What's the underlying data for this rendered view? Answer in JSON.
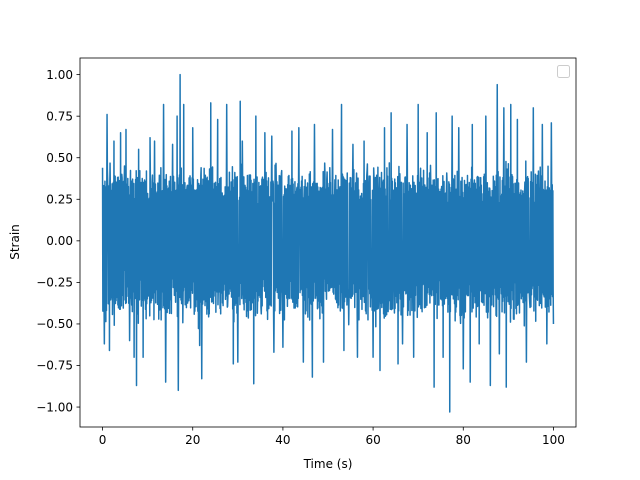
{
  "chart_data": {
    "type": "line",
    "title": "",
    "xlabel": "Time (s)",
    "ylabel": "Strain",
    "xlim": [
      -5,
      105
    ],
    "ylim": [
      -1.12,
      1.1
    ],
    "xticks": [
      0,
      20,
      40,
      60,
      80,
      100
    ],
    "xtick_labels": [
      "0",
      "20",
      "40",
      "60",
      "80",
      "100"
    ],
    "yticks": [
      -1.0,
      -0.75,
      -0.5,
      -0.25,
      0.0,
      0.25,
      0.5,
      0.75,
      1.0
    ],
    "ytick_labels": [
      "−1.00",
      "−0.75",
      "−0.50",
      "−0.25",
      "0.00",
      "0.25",
      "0.50",
      "0.75",
      "1.00"
    ],
    "grid": false,
    "legend": {
      "placement": "upper right",
      "entries": []
    },
    "colors": {
      "series": "#1f77b4",
      "axes": "#000000",
      "background": "#ffffff"
    },
    "series": [
      {
        "x_range": [
          0,
          100
        ],
        "typical_band": [
          -0.5,
          0.45
        ],
        "values": [
          {
            "x": 0.0,
            "y": 0.44
          },
          {
            "x": 0.4,
            "y": -0.62
          },
          {
            "x": 1.0,
            "y": 0.76
          },
          {
            "x": 1.5,
            "y": -0.66
          },
          {
            "x": 2.5,
            "y": 0.6
          },
          {
            "x": 4.0,
            "y": 0.65
          },
          {
            "x": 5.2,
            "y": 0.67
          },
          {
            "x": 6.0,
            "y": -0.6
          },
          {
            "x": 7.0,
            "y": -0.7
          },
          {
            "x": 7.5,
            "y": -0.87
          },
          {
            "x": 8.0,
            "y": 0.55
          },
          {
            "x": 9.0,
            "y": -0.7
          },
          {
            "x": 10.5,
            "y": 0.62
          },
          {
            "x": 11.5,
            "y": 0.6
          },
          {
            "x": 13.5,
            "y": 0.82
          },
          {
            "x": 14.0,
            "y": -0.85
          },
          {
            "x": 15.5,
            "y": 0.58
          },
          {
            "x": 16.5,
            "y": 0.75
          },
          {
            "x": 16.8,
            "y": -0.9
          },
          {
            "x": 17.2,
            "y": 1.0
          },
          {
            "x": 18.0,
            "y": 0.82
          },
          {
            "x": 20.0,
            "y": 0.68
          },
          {
            "x": 21.5,
            "y": -0.63
          },
          {
            "x": 22.0,
            "y": -0.83
          },
          {
            "x": 24.0,
            "y": 0.83
          },
          {
            "x": 25.5,
            "y": 0.73
          },
          {
            "x": 27.5,
            "y": 0.82
          },
          {
            "x": 29.0,
            "y": -0.74
          },
          {
            "x": 30.0,
            "y": -0.73
          },
          {
            "x": 30.5,
            "y": 0.84
          },
          {
            "x": 31.0,
            "y": 0.6
          },
          {
            "x": 33.5,
            "y": -0.86
          },
          {
            "x": 34.0,
            "y": 0.75
          },
          {
            "x": 36.0,
            "y": 0.65
          },
          {
            "x": 37.5,
            "y": 0.63
          },
          {
            "x": 38.0,
            "y": -0.67
          },
          {
            "x": 40.0,
            "y": -0.64
          },
          {
            "x": 42.0,
            "y": 0.66
          },
          {
            "x": 43.5,
            "y": 0.68
          },
          {
            "x": 44.5,
            "y": -0.73
          },
          {
            "x": 46.5,
            "y": -0.82
          },
          {
            "x": 47.0,
            "y": 0.7
          },
          {
            "x": 49.0,
            "y": -0.73
          },
          {
            "x": 51.0,
            "y": 0.67
          },
          {
            "x": 53.0,
            "y": 0.82
          },
          {
            "x": 53.5,
            "y": -0.66
          },
          {
            "x": 55.5,
            "y": 0.58
          },
          {
            "x": 56.5,
            "y": -0.7
          },
          {
            "x": 58.0,
            "y": 0.6
          },
          {
            "x": 60.0,
            "y": -0.7
          },
          {
            "x": 61.5,
            "y": -0.78
          },
          {
            "x": 62.5,
            "y": 0.68
          },
          {
            "x": 64.0,
            "y": 0.77
          },
          {
            "x": 65.5,
            "y": -0.74
          },
          {
            "x": 66.5,
            "y": -0.62
          },
          {
            "x": 67.5,
            "y": 0.7
          },
          {
            "x": 69.0,
            "y": -0.7
          },
          {
            "x": 70.0,
            "y": 0.82
          },
          {
            "x": 72.0,
            "y": 0.65
          },
          {
            "x": 73.5,
            "y": -0.88
          },
          {
            "x": 74.0,
            "y": 0.77
          },
          {
            "x": 75.5,
            "y": -0.7
          },
          {
            "x": 77.0,
            "y": -1.03
          },
          {
            "x": 77.5,
            "y": 0.75
          },
          {
            "x": 79.0,
            "y": 0.68
          },
          {
            "x": 80.0,
            "y": -0.77
          },
          {
            "x": 81.5,
            "y": -0.85
          },
          {
            "x": 82.0,
            "y": 0.7
          },
          {
            "x": 83.5,
            "y": -0.62
          },
          {
            "x": 85.0,
            "y": 0.75
          },
          {
            "x": 86.0,
            "y": -0.87
          },
          {
            "x": 87.5,
            "y": 0.94
          },
          {
            "x": 88.0,
            "y": -0.68
          },
          {
            "x": 89.0,
            "y": 0.8
          },
          {
            "x": 89.5,
            "y": -0.88
          },
          {
            "x": 90.5,
            "y": 0.82
          },
          {
            "x": 92.0,
            "y": 0.73
          },
          {
            "x": 94.0,
            "y": -0.73
          },
          {
            "x": 95.5,
            "y": 0.8
          },
          {
            "x": 97.5,
            "y": 0.7
          },
          {
            "x": 98.5,
            "y": -0.62
          },
          {
            "x": 99.5,
            "y": 0.71
          },
          {
            "x": 100.0,
            "y": -0.5
          }
        ]
      }
    ]
  }
}
